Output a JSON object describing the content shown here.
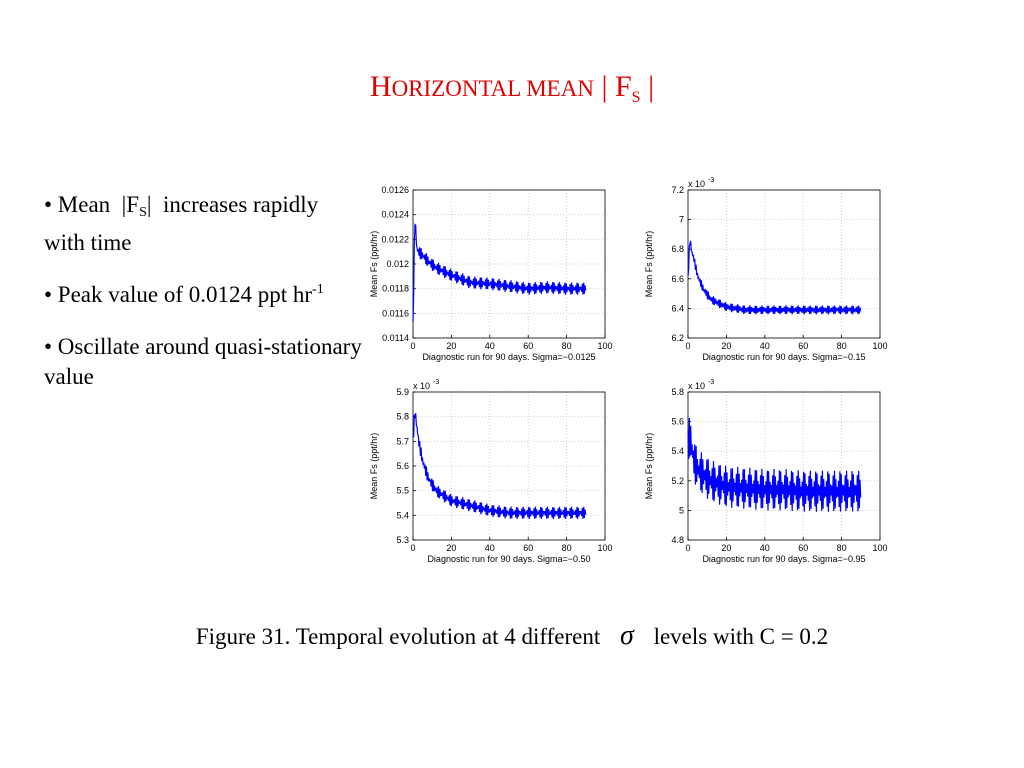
{
  "slide": {
    "title_cap1": "H",
    "title_small": "ORIZONTAL MEAN",
    "title_bar1": "|",
    "title_cap2": "F",
    "title_sub": "S",
    "title_bar2": "|",
    "bullet1_prefix": "• Mean",
    "bullet1_bar1": "|F",
    "bullet1_sub": "S",
    "bullet1_bar2": "|",
    "bullet1_suffix": "increases rapidly with time",
    "bullet2_text": "•  Peak value of 0.0124 ppt hr",
    "bullet2_sup": "-1",
    "bullet3_text": "• Oscillate around quasi-stationary value",
    "caption_pre": "Figure 31.  Temporal evolution  at  4  different",
    "caption_sigma": "σ",
    "caption_post": "levels with C = 0.2"
  },
  "chart_data": [
    {
      "type": "line",
      "xlabel": "Diagnostic run for 90 days. Sigma=−0.0125",
      "ylabel": "Mean Fs (ppt/hr)",
      "exponent": "",
      "xlim": [
        0,
        100
      ],
      "ylim": [
        0.0114,
        0.0126
      ],
      "xticks": [
        0,
        20,
        40,
        60,
        80,
        100
      ],
      "yticks": [
        "0.0114",
        "0.0116",
        "0.0118",
        "0.012",
        "0.0122",
        "0.0124",
        "0.0126"
      ],
      "grid": true,
      "color": "#0000ff",
      "series": [
        {
          "x": [
            0,
            1,
            2,
            3,
            5,
            8,
            12,
            20,
            30,
            40,
            50,
            60,
            70,
            80,
            90
          ],
          "y": [
            0.0115,
            0.01238,
            0.01212,
            0.0121,
            0.01207,
            0.01202,
            0.01197,
            0.01191,
            0.01185,
            0.01184,
            0.01182,
            0.0118,
            0.01181,
            0.0118,
            0.0118
          ],
          "band": 5e-05
        }
      ]
    },
    {
      "type": "line",
      "xlabel": "Diagnostic run for 90 days. Sigma=−0.15",
      "ylabel": "Mean Fs (ppt/hr)",
      "exponent": "x 10",
      "exponent_power": "-3",
      "xlim": [
        0,
        100
      ],
      "ylim": [
        6.2,
        7.2
      ],
      "xticks": [
        0,
        20,
        40,
        60,
        80,
        100
      ],
      "yticks": [
        "6.2",
        "6.4",
        "6.6",
        "6.8",
        "7",
        "7.2"
      ],
      "grid": true,
      "color": "#0000ff",
      "series": [
        {
          "x": [
            0,
            1,
            2,
            3,
            5,
            8,
            12,
            20,
            30,
            40,
            50,
            60,
            70,
            80,
            90
          ],
          "y": [
            6.6,
            6.87,
            6.78,
            6.74,
            6.62,
            6.53,
            6.46,
            6.41,
            6.39,
            6.39,
            6.39,
            6.39,
            6.39,
            6.39,
            6.39
          ],
          "band": 0.03
        }
      ]
    },
    {
      "type": "line",
      "xlabel": "Diagnostic run for 90 days. Sigma=−0.50",
      "ylabel": "Mean Fs (ppt/hr)",
      "exponent": "x 10",
      "exponent_power": "-3",
      "xlim": [
        0,
        100
      ],
      "ylim": [
        5.3,
        5.9
      ],
      "xticks": [
        0,
        20,
        40,
        60,
        80,
        100
      ],
      "yticks": [
        "5.3",
        "5.4",
        "5.5",
        "5.6",
        "5.7",
        "5.8",
        "5.9"
      ],
      "grid": true,
      "color": "#0000ff",
      "series": [
        {
          "x": [
            0,
            1,
            2,
            3,
            5,
            8,
            12,
            20,
            30,
            40,
            50,
            60,
            70,
            80,
            90
          ],
          "y": [
            5.7,
            5.82,
            5.76,
            5.7,
            5.62,
            5.55,
            5.5,
            5.46,
            5.44,
            5.42,
            5.41,
            5.41,
            5.41,
            5.41,
            5.41
          ],
          "band": 0.025
        }
      ]
    },
    {
      "type": "line",
      "xlabel": "Diagnostic run for 90 days. Sigma=−0.95",
      "ylabel": "Mean Fs (ppt/hr)",
      "exponent": "x 10",
      "exponent_power": "-3",
      "xlim": [
        0,
        100
      ],
      "ylim": [
        4.8,
        5.8
      ],
      "xticks": [
        0,
        20,
        40,
        60,
        80,
        100
      ],
      "yticks": [
        "4.8",
        "5",
        "5.2",
        "5.4",
        "5.6",
        "5.8"
      ],
      "grid": true,
      "color": "#0000ff",
      "series": [
        {
          "x": [
            0,
            1,
            2,
            3,
            5,
            8,
            12,
            20,
            30,
            40,
            50,
            60,
            70,
            80,
            90
          ],
          "y": [
            5.45,
            5.5,
            5.42,
            5.34,
            5.28,
            5.24,
            5.2,
            5.16,
            5.15,
            5.14,
            5.14,
            5.13,
            5.13,
            5.13,
            5.13
          ],
          "band": 0.14
        }
      ]
    }
  ]
}
